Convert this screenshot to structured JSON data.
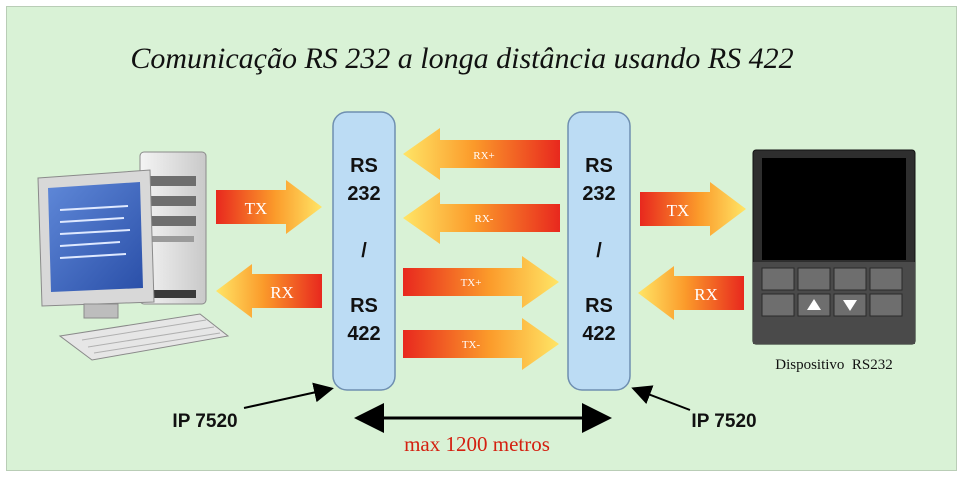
{
  "title": "Comunicação RS 232 a longa distância usando RS 422",
  "converter_left": {
    "line1": "RS",
    "line2": "232",
    "sep": "/",
    "line3": "RS",
    "line4": "422"
  },
  "converter_right": {
    "line1": "RS",
    "line2": "232",
    "sep": "/",
    "line3": "RS",
    "line4": "422"
  },
  "arrows": {
    "pc_tx": "TX",
    "pc_rx": "RX",
    "rx_plus": "RX+",
    "rx_minus": "RX-",
    "tx_plus": "TX+",
    "tx_minus": "TX-",
    "dev_tx": "TX",
    "dev_rx": "RX"
  },
  "device_label": "Dispositivo  RS232",
  "left_module_label": "IP 7520",
  "right_module_label": "IP 7520",
  "distance_label": "max 1200 metros",
  "colors": {
    "background": "#d9f2d6",
    "converter_fill": "#bcdcf4",
    "arrow_red": "#e8281e",
    "arrow_yellow": "#ffe566",
    "distance_text": "#d42010"
  }
}
